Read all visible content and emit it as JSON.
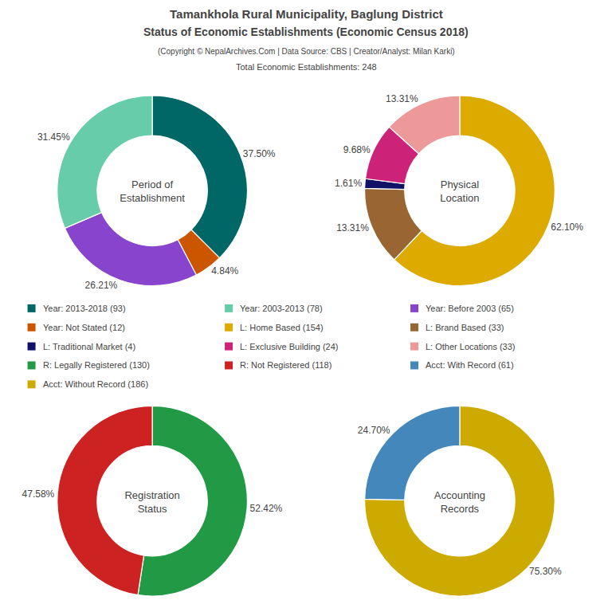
{
  "title": [
    "Tamankhola Rural Municipality, Baglung District",
    "Status of Economic Establishments (Economic Census 2018)"
  ],
  "subtitle": [
    "(Copyright © NepalArchives.Com | Data Source: CBS | Creator/Analyst: Milan Karki)",
    "Total Economic Establishments: 248"
  ],
  "legend_items": [
    {
      "label": "Year: 2013-2018 (93)",
      "color": "#006666"
    },
    {
      "label": "Year: 2003-2013 (78)",
      "color": "#66ccaa"
    },
    {
      "label": "Year: Before 2003 (65)",
      "color": "#8844cc"
    },
    {
      "label": "Year: Not Stated (12)",
      "color": "#cc5500"
    },
    {
      "label": "L: Home Based (154)",
      "color": "#ddaa00"
    },
    {
      "label": "L: Brand Based (33)",
      "color": "#996633"
    },
    {
      "label": "L: Traditional Market (4)",
      "color": "#111166"
    },
    {
      "label": "L: Exclusive Building (24)",
      "color": "#cc2277"
    },
    {
      "label": "L: Other Locations (33)",
      "color": "#ee9999"
    },
    {
      "label": "R: Legally Registered (130)",
      "color": "#229944"
    },
    {
      "label": "R: Not Registered (118)",
      "color": "#cc2222"
    },
    {
      "label": "Acct: With Record (61)",
      "color": "#4488bb"
    },
    {
      "label": "Acct: Without Record (186)",
      "color": "#ccaa00"
    }
  ],
  "chart_data": [
    {
      "type": "pie",
      "title": "Period of\nEstablishment",
      "values": [
        37.5,
        4.84,
        26.21,
        31.45
      ],
      "value_labels": [
        "37.50%",
        "4.84%",
        "26.21%",
        "31.45%"
      ],
      "colors": [
        "#006666",
        "#cc5500",
        "#8844cc",
        "#66ccaa"
      ],
      "data_labels": true
    },
    {
      "type": "pie",
      "title": "Physical\nLocation",
      "values": [
        62.1,
        13.31,
        1.61,
        9.68,
        13.31
      ],
      "value_labels": [
        "62.10%",
        "13.31%",
        "1.61%",
        "9.68%",
        "13.31%"
      ],
      "colors": [
        "#ddaa00",
        "#996633",
        "#111166",
        "#cc2277",
        "#ee9999"
      ],
      "data_labels": true
    },
    {
      "type": "pie",
      "title": "Registration\nStatus",
      "values": [
        52.42,
        47.58
      ],
      "value_labels": [
        "52.42%",
        "47.58%"
      ],
      "colors": [
        "#229944",
        "#cc2222"
      ],
      "data_labels": true
    },
    {
      "type": "pie",
      "title": "Accounting\nRecords",
      "values": [
        75.3,
        24.7
      ],
      "value_labels": [
        "75.30%",
        "24.70%"
      ],
      "colors": [
        "#ccaa00",
        "#4488bb"
      ],
      "data_labels": true
    }
  ]
}
